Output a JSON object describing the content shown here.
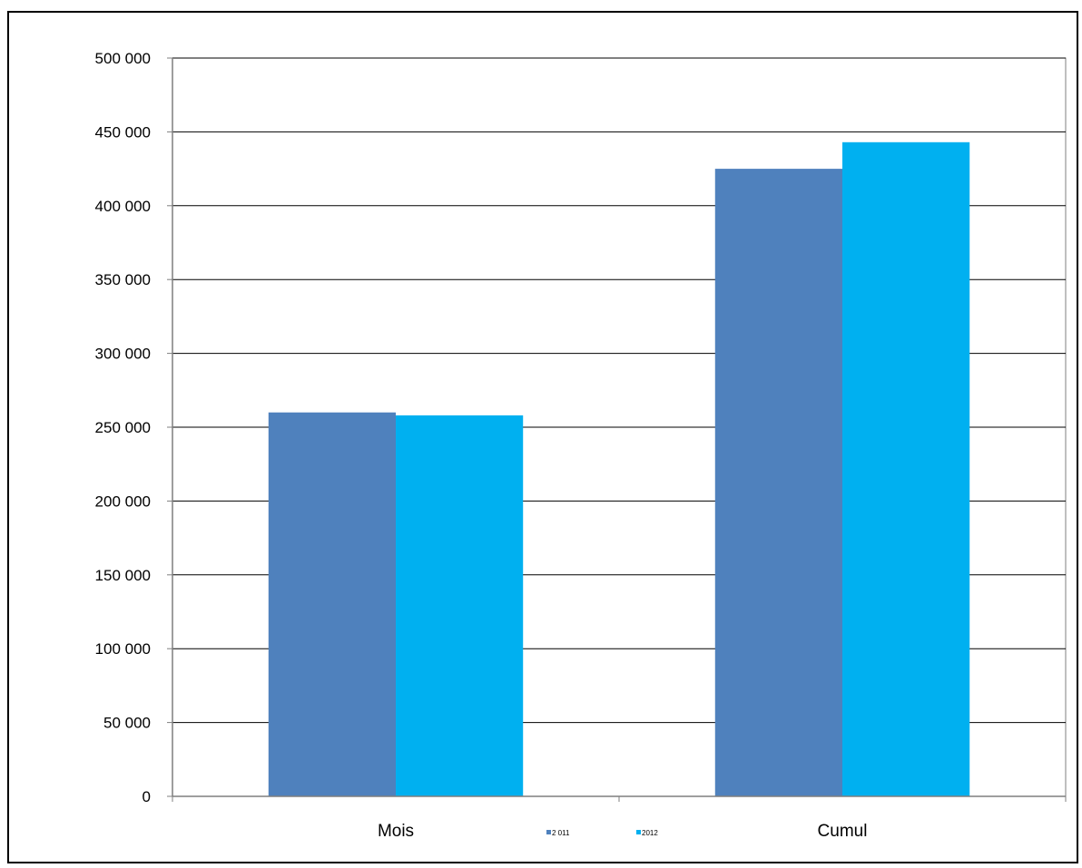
{
  "chart_data": {
    "type": "bar",
    "title": "",
    "xlabel": "",
    "ylabel": "",
    "categories": [
      "Mois",
      "Cumul"
    ],
    "series": [
      {
        "name": "2 011",
        "values": [
          260000,
          425000
        ],
        "color": "#4F81BD"
      },
      {
        "name": "2012",
        "values": [
          258000,
          443000
        ],
        "color": "#00B0F0"
      }
    ],
    "ylim": [
      0,
      500000
    ],
    "yticks": [
      0,
      50000,
      100000,
      150000,
      200000,
      250000,
      300000,
      350000,
      400000,
      450000,
      500000
    ],
    "ytick_labels": [
      "0",
      "50 000",
      "100 000",
      "150 000",
      "200 000",
      "250 000",
      "300 000",
      "350 000",
      "400 000",
      "450 000",
      "500 000"
    ],
    "grid": true,
    "legend_position": "bottom-center"
  }
}
